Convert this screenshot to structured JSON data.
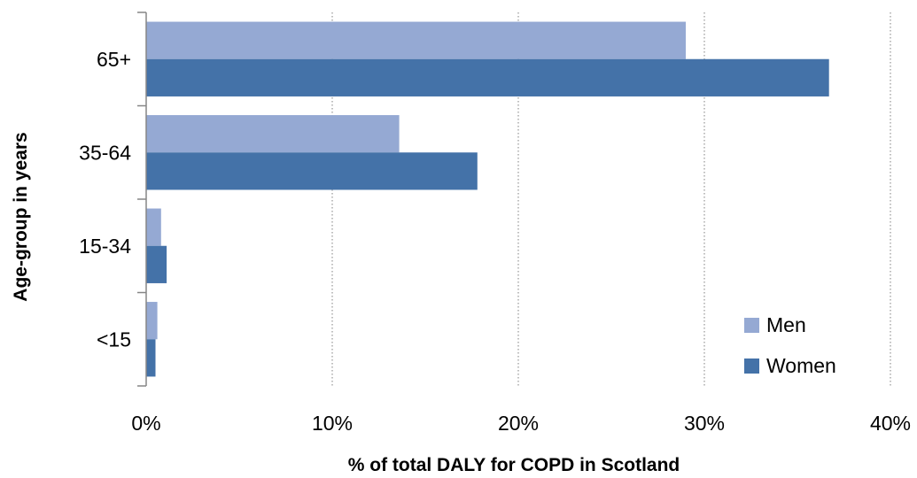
{
  "chart_data": {
    "type": "bar",
    "orientation": "horizontal",
    "categories": [
      "65+",
      "35-64",
      "15-34",
      "<15"
    ],
    "series": [
      {
        "name": "Men",
        "values": [
          29.0,
          13.6,
          0.8,
          0.6
        ],
        "color": "#95a9d3"
      },
      {
        "name": "Women",
        "values": [
          36.7,
          17.8,
          1.1,
          0.5
        ],
        "color": "#4472a8"
      }
    ],
    "xlabel": "% of total DALY for COPD in Scotland",
    "ylabel": "Age-group in years",
    "xlim": [
      0,
      40
    ],
    "xticks": [
      0,
      10,
      20,
      30,
      40
    ],
    "xtick_labels": [
      "0%",
      "10%",
      "20%",
      "30%",
      "40%"
    ],
    "grid": "vertical dotted",
    "legend_position": "bottom-right"
  }
}
